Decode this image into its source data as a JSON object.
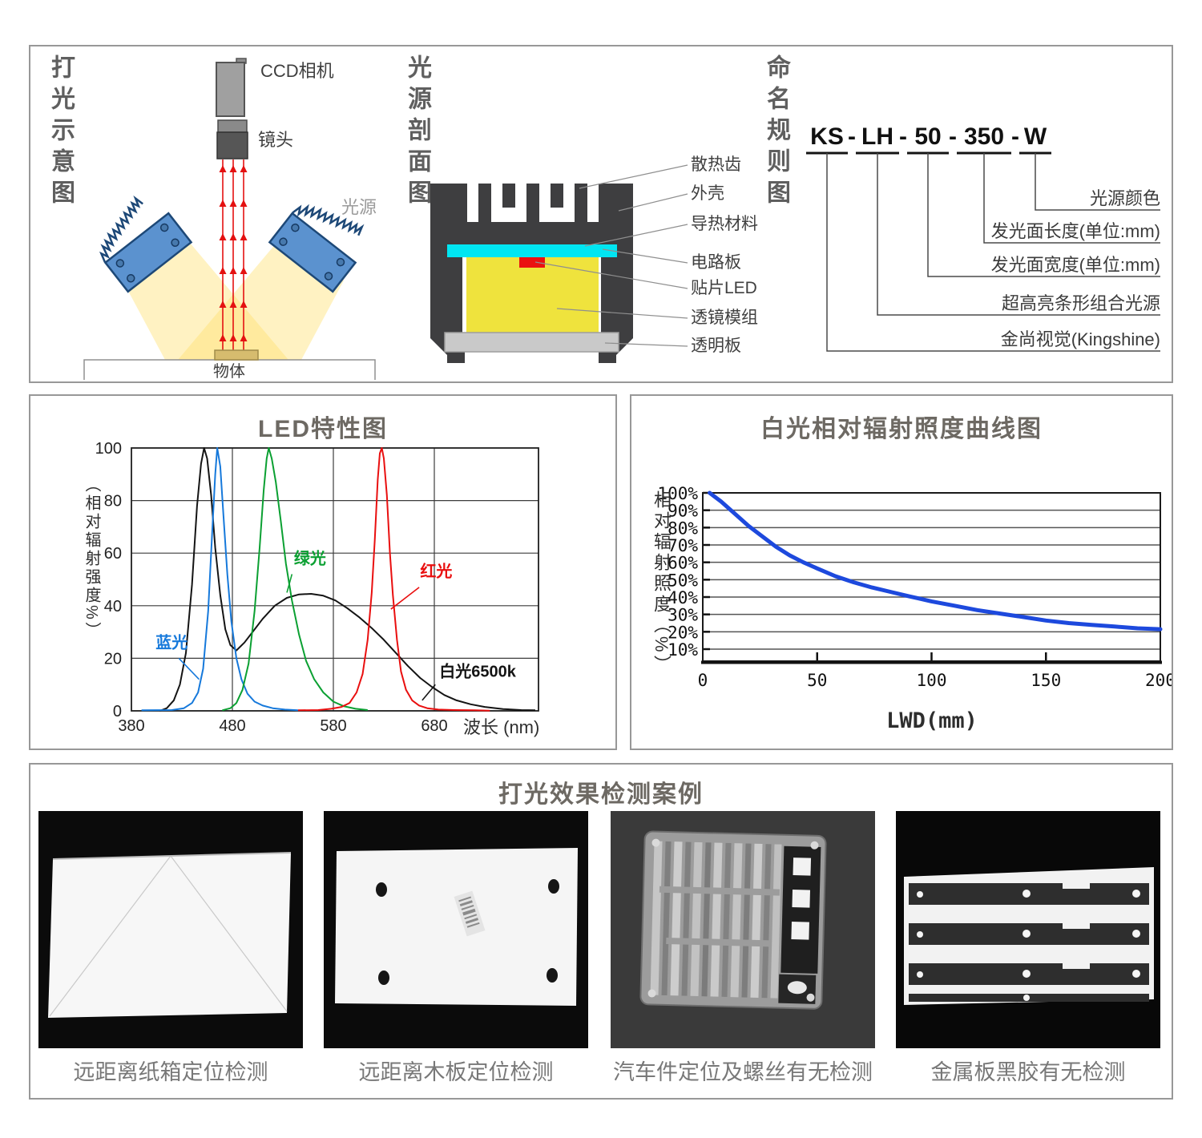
{
  "panels": {
    "lighting": {
      "title": "打光示意图",
      "camera_label": "CCD相机",
      "lens_label": "镜头",
      "light_label": "光源",
      "object_label": "物体"
    },
    "cross_section": {
      "title": "光源剖面图",
      "labels": [
        "散热齿",
        "外壳",
        "导热材料",
        "电路板",
        "贴片LED",
        "透镜模组",
        "透明板"
      ]
    },
    "naming": {
      "title": "命名规则图",
      "code": "KS - LH - 50 - 350 - W",
      "segments": [
        "KS",
        "LH",
        "50",
        "350",
        "W"
      ],
      "separator": "-",
      "labels": [
        "光源颜色",
        "发光面长度(单位:mm)",
        "发光面宽度(单位:mm)",
        "超高亮条形组合光源",
        "金尚视觉(Kingshine)"
      ]
    },
    "cases": {
      "title": "打光效果检测案例",
      "captions": [
        "远距离纸箱定位检测",
        "远距离木板定位检测",
        "汽车件定位及螺丝有无检测",
        "金属板黑胶有无检测"
      ]
    }
  },
  "colors": {
    "accent_red": "#e41111",
    "lamp_blue": "#5b92cf",
    "pcb_cyan": "#00e6f2",
    "lens_yellow": "#efe33d",
    "beam_yellow": "#ffdf6e",
    "housing_dark": "#3e3e40",
    "curve_blue": "#1d49dd"
  },
  "chart_data": [
    {
      "type": "line",
      "title": "LED特性图",
      "xlabel": "波长 (nm)",
      "ylabel": "（相对辐射强度%）",
      "xlim": [
        380,
        783
      ],
      "ylim": [
        0,
        100
      ],
      "xticks": [
        380,
        480,
        580,
        680
      ],
      "yticks": [
        0,
        20,
        40,
        60,
        80,
        100
      ],
      "grid": true,
      "legend_position": "inline-annotations",
      "series": [
        {
          "name": "白光6500k",
          "color": "#141414",
          "anchor": "start",
          "label_at": [
            685,
            13
          ],
          "leader": [
            [
              681,
              10
            ],
            [
              668,
              4
            ]
          ],
          "points": [
            [
              408,
              0
            ],
            [
              415,
              1
            ],
            [
              422,
              4
            ],
            [
              428,
              10
            ],
            [
              434,
              22
            ],
            [
              440,
              48
            ],
            [
              445,
              78
            ],
            [
              449,
              94
            ],
            [
              452,
              100
            ],
            [
              455,
              96
            ],
            [
              459,
              82
            ],
            [
              463,
              62
            ],
            [
              468,
              44
            ],
            [
              473,
              31
            ],
            [
              478,
              25
            ],
            [
              484,
              23
            ],
            [
              492,
              26
            ],
            [
              500,
              30
            ],
            [
              510,
              35
            ],
            [
              522,
              40
            ],
            [
              534,
              43
            ],
            [
              546,
              44.3
            ],
            [
              558,
              44.5
            ],
            [
              570,
              43.8
            ],
            [
              582,
              42
            ],
            [
              594,
              39
            ],
            [
              606,
              35.5
            ],
            [
              618,
              31.5
            ],
            [
              630,
              27
            ],
            [
              642,
              22
            ],
            [
              654,
              17
            ],
            [
              666,
              12.5
            ],
            [
              678,
              9
            ],
            [
              690,
              6
            ],
            [
              702,
              4
            ],
            [
              716,
              2.5
            ],
            [
              730,
              1.5
            ],
            [
              748,
              0.7
            ],
            [
              766,
              0.3
            ],
            [
              780,
              0.2
            ]
          ]
        },
        {
          "name": "蓝光",
          "color": "#1679db",
          "anchor": "start",
          "label_at": [
            404,
            24
          ],
          "leader": [
            [
              427,
              20
            ],
            [
              447,
              12
            ]
          ],
          "points": [
            [
              390,
              0.2
            ],
            [
              420,
              0.3
            ],
            [
              432,
              1
            ],
            [
              440,
              3
            ],
            [
              446,
              7
            ],
            [
              451,
              16
            ],
            [
              456,
              38
            ],
            [
              460,
              68
            ],
            [
              463,
              90
            ],
            [
              465,
              100
            ],
            [
              468,
              93
            ],
            [
              471,
              75
            ],
            [
              475,
              52
            ],
            [
              479,
              34
            ],
            [
              484,
              20
            ],
            [
              489,
              12
            ],
            [
              495,
              6.5
            ],
            [
              502,
              3.5
            ],
            [
              510,
              2
            ],
            [
              520,
              1
            ],
            [
              532,
              0.5
            ],
            [
              545,
              0.2
            ]
          ]
        },
        {
          "name": "绿光",
          "color": "#0ba032",
          "anchor": "start",
          "label_at": [
            541,
            56
          ],
          "leader": [
            [
              539,
              52
            ],
            [
              534,
              45
            ]
          ],
          "points": [
            [
              470,
              0.2
            ],
            [
              478,
              1
            ],
            [
              484,
              3
            ],
            [
              490,
              8
            ],
            [
              496,
              18
            ],
            [
              502,
              38
            ],
            [
              507,
              62
            ],
            [
              511,
              84
            ],
            [
              514,
              96
            ],
            [
              516,
              100
            ],
            [
              519,
              96
            ],
            [
              523,
              87
            ],
            [
              528,
              72
            ],
            [
              533,
              56
            ],
            [
              539,
              42
            ],
            [
              546,
              29
            ],
            [
              553,
              19
            ],
            [
              561,
              12
            ],
            [
              570,
              7
            ],
            [
              580,
              3.5
            ],
            [
              590,
              1.8
            ],
            [
              602,
              0.8
            ],
            [
              614,
              0.3
            ]
          ]
        },
        {
          "name": "红光",
          "color": "#e90f0f",
          "anchor": "start",
          "label_at": [
            666,
            51
          ],
          "leader": [
            [
              665,
              47
            ],
            [
              637,
              38.7
            ]
          ],
          "points": [
            [
              545,
              0.2
            ],
            [
              565,
              0.3
            ],
            [
              578,
              0.8
            ],
            [
              588,
              1.5
            ],
            [
              596,
              3
            ],
            [
              603,
              7
            ],
            [
              609,
              14
            ],
            [
              614,
              27
            ],
            [
              618,
              45
            ],
            [
              621,
              65
            ],
            [
              624,
              88
            ],
            [
              626,
              98
            ],
            [
              628,
              100
            ],
            [
              630,
              96
            ],
            [
              633,
              82
            ],
            [
              636,
              60
            ],
            [
              639,
              44
            ],
            [
              643,
              27
            ],
            [
              647,
              15
            ],
            [
              652,
              8
            ],
            [
              658,
              4
            ],
            [
              665,
              2
            ],
            [
              673,
              1
            ],
            [
              684,
              0.5
            ],
            [
              700,
              0.3
            ],
            [
              720,
              0.2
            ],
            [
              735,
              0.1
            ]
          ]
        }
      ]
    },
    {
      "type": "line",
      "title": "白光相对辐射照度曲线图",
      "xlabel": "LWD(mm)",
      "ylabel": "相对辐射照度（%）",
      "xlim": [
        0,
        200
      ],
      "ylim": [
        10,
        100
      ],
      "xticks": [
        0,
        50,
        100,
        150,
        200
      ],
      "yticks": [
        10,
        20,
        30,
        40,
        50,
        60,
        70,
        80,
        90,
        100
      ],
      "ytick_suffix": "%",
      "grid": true,
      "legend_position": "none",
      "series": [
        {
          "name": "白光",
          "color": "#1d49dd",
          "width": 5,
          "points": [
            [
              3,
              100
            ],
            [
              8,
              95
            ],
            [
              14,
              88
            ],
            [
              20,
              81
            ],
            [
              26,
              75
            ],
            [
              32,
              69
            ],
            [
              38,
              64
            ],
            [
              44,
              60
            ],
            [
              50,
              56.5
            ],
            [
              58,
              52
            ],
            [
              66,
              48.5
            ],
            [
              74,
              45.5
            ],
            [
              82,
              43
            ],
            [
              90,
              40.5
            ],
            [
              100,
              37.5
            ],
            [
              110,
              35
            ],
            [
              120,
              32.5
            ],
            [
              130,
              30.5
            ],
            [
              140,
              28.5
            ],
            [
              150,
              26.5
            ],
            [
              160,
              25
            ],
            [
              170,
              24
            ],
            [
              180,
              23
            ],
            [
              190,
              22
            ],
            [
              200,
              21.5
            ]
          ]
        }
      ]
    }
  ]
}
